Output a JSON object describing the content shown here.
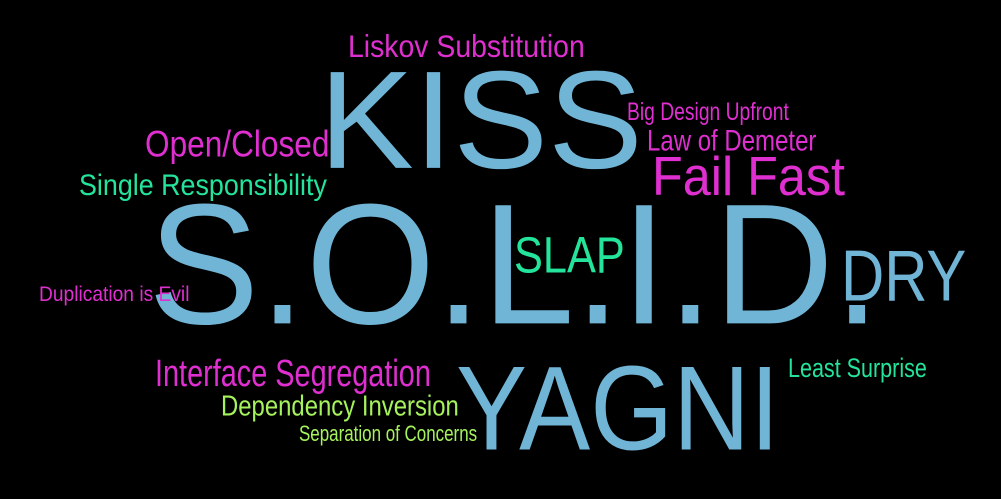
{
  "colors": {
    "background": "#000000",
    "blue": "#71b5d6",
    "pink": "#e02fd0",
    "green": "#23e49a",
    "lime": "#a5f25d"
  },
  "words": {
    "liskov": "Liskov Substitution",
    "kiss": "KISS",
    "big_design": "Big Design Upfront",
    "open_closed": "Open/Closed",
    "law_demeter": "Law of Demeter",
    "fail_fast": "Fail Fast",
    "single_resp": "Single Responsibility",
    "solid": "S.O.L.I.D.",
    "slap": "SLAP",
    "dry": "DRY",
    "duplication": "Duplication is Evil",
    "interface_seg": "Interface Segregation",
    "least_surprise": "Least Surprise",
    "yagni": "YAGNI",
    "dependency_inv": "Dependency Inversion",
    "separation": "Separation of Concerns"
  }
}
